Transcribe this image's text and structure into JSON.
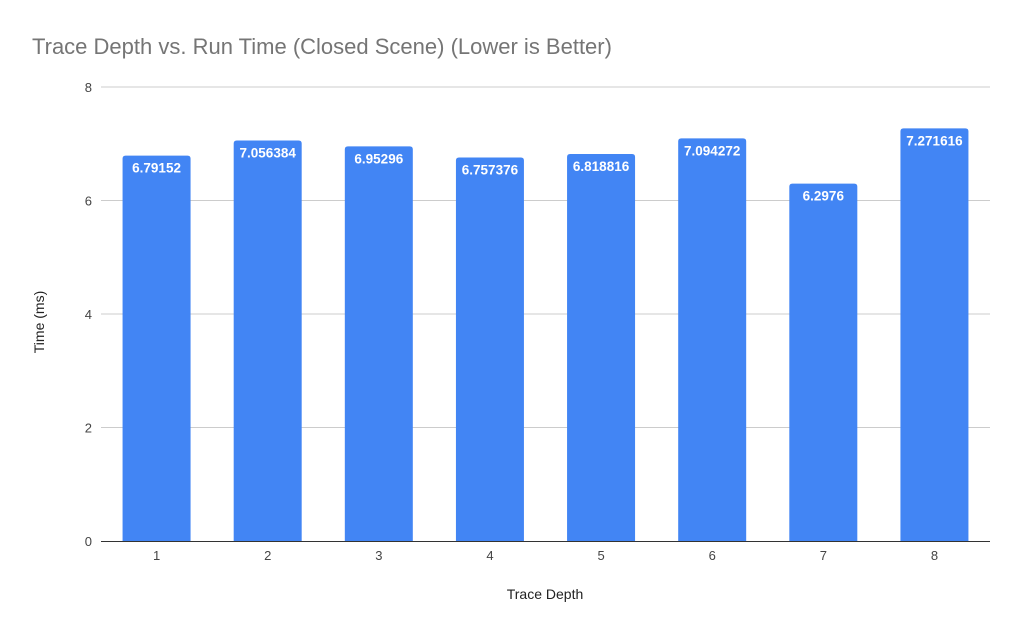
{
  "chart_data": {
    "type": "bar",
    "title": "Trace Depth vs. Run Time (Closed Scene) (Lower is Better)",
    "xlabel": "Trace Depth",
    "ylabel": "Time (ms)",
    "categories": [
      "1",
      "2",
      "3",
      "4",
      "5",
      "6",
      "7",
      "8"
    ],
    "values": [
      6.79152,
      7.056384,
      6.95296,
      6.757376,
      6.818816,
      7.094272,
      6.2976,
      7.271616
    ],
    "data_labels": [
      "6.79152",
      "7.056384",
      "6.95296",
      "6.757376",
      "6.818816",
      "7.094272",
      "6.2976",
      "7.271616"
    ],
    "ylim": [
      0,
      8
    ],
    "yticks": [
      0,
      2,
      4,
      6,
      8
    ],
    "grid": true,
    "legend": "none",
    "colors": {
      "bar": "#4285f4"
    }
  }
}
